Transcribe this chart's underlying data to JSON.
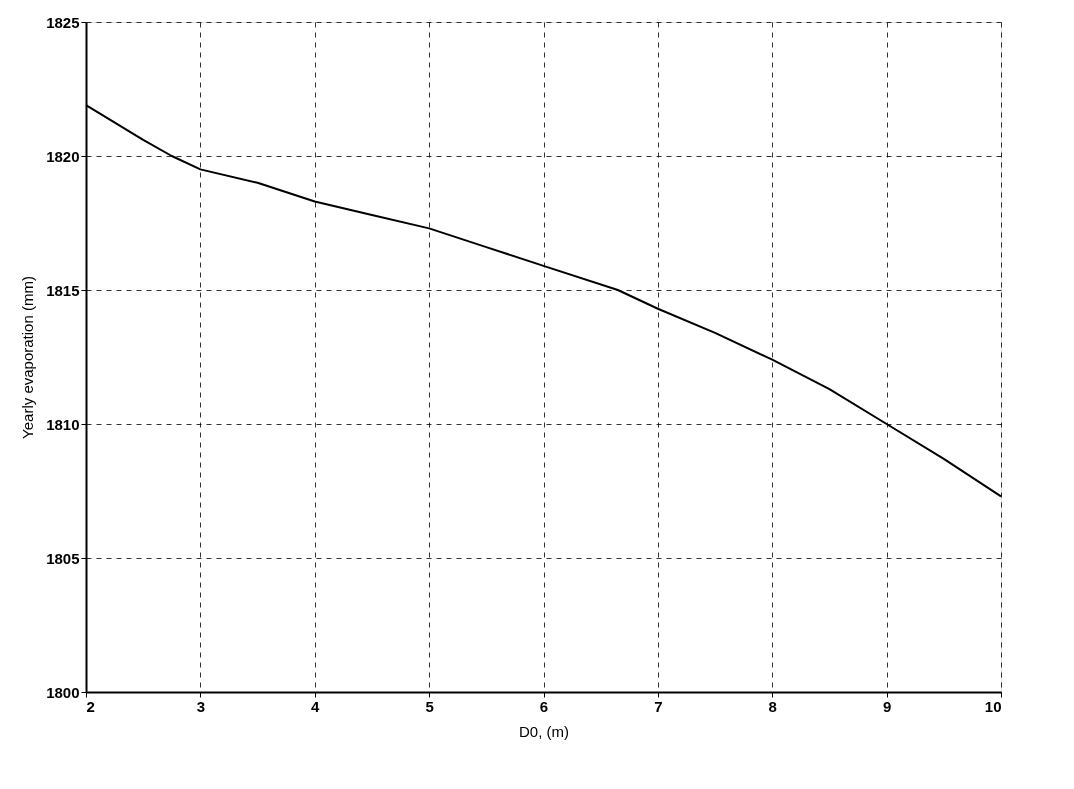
{
  "chart_data": {
    "type": "line",
    "xlabel": "D0,  (m)",
    "ylabel": "Yearly evaporation (mm)",
    "x": [
      2,
      2.5,
      2.75,
      3,
      3.5,
      4,
      4.5,
      5,
      5.5,
      6,
      6.65,
      7,
      7.5,
      8,
      8.5,
      9,
      9.5,
      10
    ],
    "series": [
      {
        "color": "#000000",
        "values": [
          1821.9,
          1820.6,
          1820.0,
          1819.5,
          1819.0,
          1818.3,
          1817.8,
          1817.3,
          1816.6,
          1815.9,
          1815.0,
          1814.3,
          1813.4,
          1812.4,
          1811.3,
          1810.0,
          1808.7,
          1807.3
        ]
      }
    ],
    "xlim": [
      2,
      10
    ],
    "xticks": [
      2,
      3,
      4,
      5,
      6,
      7,
      8,
      9,
      10
    ],
    "ylim": [
      1800,
      1825
    ],
    "yticks": [
      1800,
      1805,
      1810,
      1815,
      1820,
      1825
    ],
    "grid": true,
    "line_style": "solid",
    "marker": "none"
  }
}
